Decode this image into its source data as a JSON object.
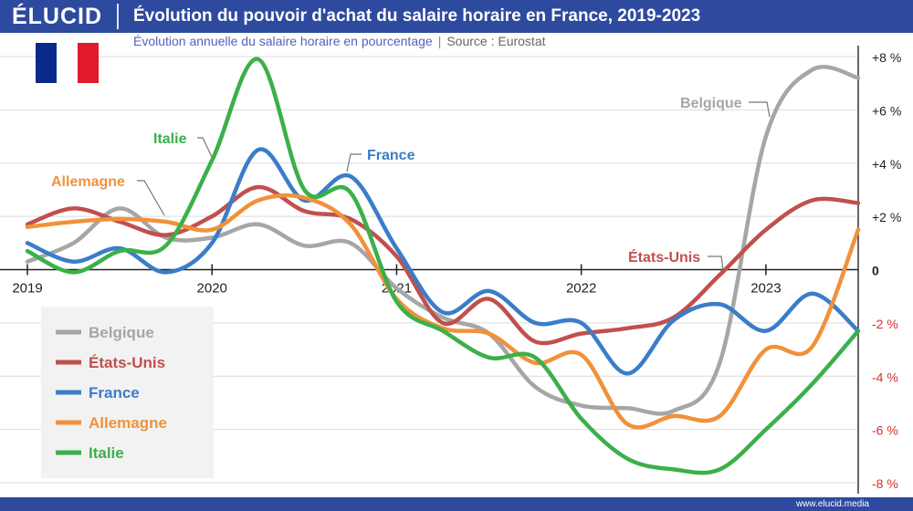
{
  "header": {
    "logo": "ÉLUCID",
    "title": "Évolution du pouvoir d'achat du salaire horaire en France, 2019-2023",
    "subtitle": "Évolution annuelle du salaire horaire en pourcentage",
    "subtitle_sep": "|",
    "source": "Source : Eurostat"
  },
  "footer": {
    "url": "www.elucid.media"
  },
  "flag": {
    "colors": [
      "#0a2a8a",
      "#ffffff",
      "#e0192d"
    ]
  },
  "chart_data": {
    "type": "line",
    "title": "Évolution du pouvoir d'achat du salaire horaire en France, 2019-2023",
    "subtitle": "Évolution annuelle du salaire horaire en pourcentage",
    "x_ticks": [
      "2019",
      "2020",
      "2021",
      "2022",
      "2023"
    ],
    "x_range": [
      2019.0,
      2023.5
    ],
    "y_range": [
      -8,
      8
    ],
    "y_ticks": [
      {
        "value": 8,
        "label": "+8 %"
      },
      {
        "value": 6,
        "label": "+6 %"
      },
      {
        "value": 4,
        "label": "+4 %"
      },
      {
        "value": 2,
        "label": "+2 %"
      },
      {
        "value": 0,
        "label": "0"
      },
      {
        "value": -2,
        "label": "-2 %"
      },
      {
        "value": -4,
        "label": "-4 %"
      },
      {
        "value": -6,
        "label": "-6 %"
      },
      {
        "value": -8,
        "label": "-8 %"
      }
    ],
    "grid": true,
    "legend_position": "bottom-left",
    "series": [
      {
        "name": "Belgique",
        "color": "#a6a6a6",
        "label": "Belgique",
        "x": [
          2019.0,
          2019.25,
          2019.5,
          2019.75,
          2020.0,
          2020.25,
          2020.5,
          2020.75,
          2021.0,
          2021.25,
          2021.5,
          2021.75,
          2022.0,
          2022.25,
          2022.5,
          2022.75,
          2023.0,
          2023.25,
          2023.5
        ],
        "values": [
          0.3,
          1.0,
          2.3,
          1.2,
          1.2,
          1.7,
          0.9,
          1.0,
          -0.7,
          -1.8,
          -2.4,
          -4.4,
          -5.1,
          -5.2,
          -5.3,
          -3.5,
          5.0,
          7.5,
          7.2
        ]
      },
      {
        "name": "États-Unis",
        "color": "#c0504d",
        "label": "États-Unis",
        "x": [
          2019.0,
          2019.25,
          2019.5,
          2019.75,
          2020.0,
          2020.25,
          2020.5,
          2020.75,
          2021.0,
          2021.25,
          2021.5,
          2021.75,
          2022.0,
          2022.25,
          2022.5,
          2022.75,
          2023.0,
          2023.25,
          2023.5
        ],
        "values": [
          1.7,
          2.3,
          1.8,
          1.3,
          2.0,
          3.1,
          2.2,
          1.9,
          0.5,
          -2.0,
          -1.1,
          -2.7,
          -2.4,
          -2.2,
          -1.8,
          -0.2,
          1.5,
          2.6,
          2.5
        ]
      },
      {
        "name": "France",
        "color": "#3a7dc9",
        "label": "France",
        "x": [
          2019.0,
          2019.25,
          2019.5,
          2019.75,
          2020.0,
          2020.25,
          2020.5,
          2020.75,
          2021.0,
          2021.25,
          2021.5,
          2021.75,
          2022.0,
          2022.25,
          2022.5,
          2022.75,
          2023.0,
          2023.25,
          2023.5
        ],
        "values": [
          1.0,
          0.3,
          0.8,
          -0.1,
          1.0,
          4.5,
          2.6,
          3.5,
          0.8,
          -1.6,
          -0.8,
          -2.0,
          -2.0,
          -3.9,
          -1.9,
          -1.3,
          -2.3,
          -0.9,
          -2.3
        ]
      },
      {
        "name": "Allemagne",
        "color": "#f0923a",
        "label": "Allemagne",
        "x": [
          2019.0,
          2019.25,
          2019.5,
          2019.75,
          2020.0,
          2020.25,
          2020.5,
          2020.75,
          2021.0,
          2021.25,
          2021.5,
          2021.75,
          2022.0,
          2022.25,
          2022.5,
          2022.75,
          2023.0,
          2023.25,
          2023.5
        ],
        "values": [
          1.6,
          1.8,
          1.9,
          1.8,
          1.5,
          2.6,
          2.7,
          1.7,
          -1.1,
          -2.2,
          -2.4,
          -3.5,
          -3.2,
          -5.8,
          -5.5,
          -5.5,
          -3.0,
          -2.9,
          1.5
        ]
      },
      {
        "name": "Italie",
        "color": "#3bb04a",
        "label": "Italie",
        "x": [
          2019.0,
          2019.25,
          2019.5,
          2019.75,
          2020.0,
          2020.25,
          2020.5,
          2020.75,
          2021.0,
          2021.25,
          2021.5,
          2021.75,
          2022.0,
          2022.25,
          2022.5,
          2022.75,
          2023.0,
          2023.25,
          2023.5
        ],
        "values": [
          0.7,
          -0.1,
          0.7,
          0.9,
          4.1,
          7.9,
          3.0,
          2.9,
          -1.2,
          -2.3,
          -3.3,
          -3.3,
          -5.6,
          -7.1,
          -7.5,
          -7.5,
          -6.0,
          -4.3,
          -2.3
        ]
      }
    ],
    "legend": [
      "Belgique",
      "États-Unis",
      "France",
      "Allemagne",
      "Italie"
    ]
  }
}
